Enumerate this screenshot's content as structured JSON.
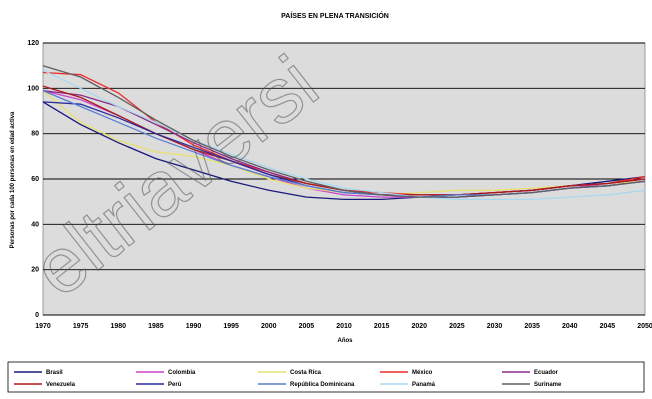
{
  "chart_data": {
    "type": "line",
    "title": "PAÍSES EN PLENA TRANSICIÓN",
    "xlabel": "Años",
    "ylabel": "Personas por cada 100 personas en edad activa",
    "x": [
      1970,
      1975,
      1980,
      1985,
      1990,
      1995,
      2000,
      2005,
      2010,
      2015,
      2020,
      2025,
      2030,
      2035,
      2040,
      2045,
      2050
    ],
    "xlim": [
      1970,
      2050
    ],
    "ylim": [
      0,
      120
    ],
    "y_ticks": [
      0,
      20,
      40,
      60,
      80,
      100,
      120
    ],
    "y_tick_labels": [
      "0",
      "20",
      "40",
      "60",
      "80",
      "100",
      "120"
    ],
    "x_tick_labels": [
      "1970",
      "1975",
      "1980",
      "1985",
      "1990",
      "1995",
      "2000",
      "2005",
      "2010",
      "2015",
      "2020",
      "2025",
      "2030",
      "2035",
      "2040",
      "2045",
      "2050"
    ],
    "grid": true,
    "legend_position": "bottom",
    "series": [
      {
        "name": "Brasil",
        "color": "#1a1a7a",
        "values": [
          94,
          84,
          76,
          69,
          64,
          59,
          55,
          52,
          51,
          51,
          52,
          53,
          54,
          55,
          57,
          59,
          61
        ]
      },
      {
        "name": "Colombia",
        "color": "#cc44cc",
        "values": [
          99,
          95,
          88,
          80,
          73,
          66,
          61,
          56,
          53,
          52,
          52,
          52,
          53,
          54,
          56,
          58,
          59
        ]
      },
      {
        "name": "Costa Rica",
        "color": "#e8e070",
        "values": [
          99,
          85,
          77,
          72,
          70,
          66,
          60,
          56,
          54,
          53,
          54,
          55,
          55,
          56,
          57,
          58,
          59
        ]
      },
      {
        "name": "México",
        "color": "#ee2a2a",
        "values": [
          107,
          106,
          98,
          85,
          75,
          68,
          63,
          58,
          55,
          54,
          53,
          53,
          54,
          55,
          57,
          58,
          61
        ]
      },
      {
        "name": "Ecuador",
        "color": "#8a2a8a",
        "values": [
          99,
          97,
          92,
          84,
          76,
          69,
          63,
          58,
          55,
          53,
          53,
          53,
          54,
          55,
          57,
          58,
          60
        ]
      },
      {
        "name": "Venezuela",
        "color": "#aa1a1a",
        "values": [
          101,
          96,
          88,
          80,
          73,
          68,
          62,
          58,
          55,
          53,
          53,
          53,
          54,
          55,
          57,
          58,
          60
        ]
      },
      {
        "name": "Perú",
        "color": "#2a2aa0",
        "values": [
          94,
          93,
          87,
          80,
          74,
          68,
          62,
          57,
          54,
          53,
          52,
          52,
          53,
          54,
          56,
          57,
          59
        ]
      },
      {
        "name": "República Dominicana",
        "color": "#5b7fd0",
        "values": [
          99,
          92,
          85,
          78,
          72,
          66,
          61,
          57,
          54,
          53,
          52,
          53,
          53,
          54,
          56,
          57,
          59
        ]
      },
      {
        "name": "Panamá",
        "color": "#a8d8f0",
        "values": [
          108,
          100,
          92,
          85,
          77,
          71,
          65,
          60,
          56,
          54,
          52,
          51,
          51,
          51,
          52,
          53,
          55
        ]
      },
      {
        "name": "Suriname",
        "color": "#606060",
        "values": [
          110,
          105,
          96,
          86,
          77,
          70,
          64,
          59,
          55,
          53,
          52,
          52,
          53,
          54,
          56,
          57,
          59
        ]
      }
    ]
  },
  "watermark": {
    "text": "eltriaversi"
  }
}
